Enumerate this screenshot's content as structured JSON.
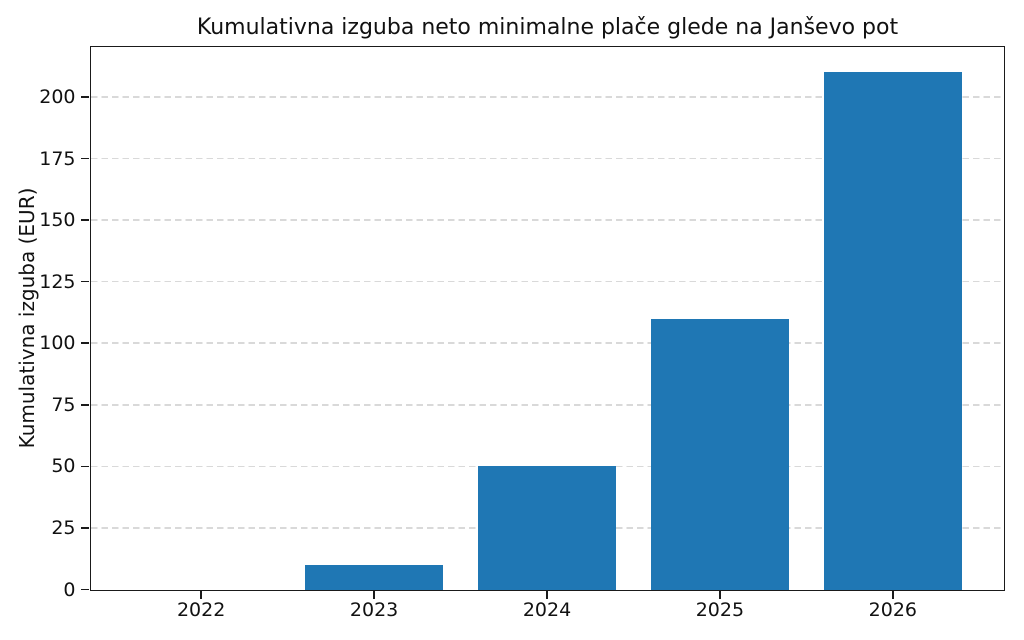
{
  "chart_data": {
    "type": "bar",
    "title": "Kumulativna izguba neto minimalne plače glede na Janševo pot",
    "xlabel": "",
    "ylabel": "Kumulativna izguba (EUR)",
    "categories": [
      "2022",
      "2023",
      "2024",
      "2025",
      "2026"
    ],
    "values": [
      0,
      10,
      50,
      110,
      210
    ],
    "yticks": [
      0,
      25,
      50,
      75,
      100,
      125,
      150,
      175,
      200
    ],
    "ylim": [
      0,
      220.5
    ],
    "xlim": [
      -0.64,
      4.64
    ],
    "bar_width_units": 0.8,
    "bar_color": "#1f77b4",
    "grid": {
      "axis": "y",
      "style": "dashed",
      "color": "#d9d9d9"
    },
    "legend_position": "none",
    "background_color": "#ffffff",
    "spine_color": "#1a1a1a"
  }
}
